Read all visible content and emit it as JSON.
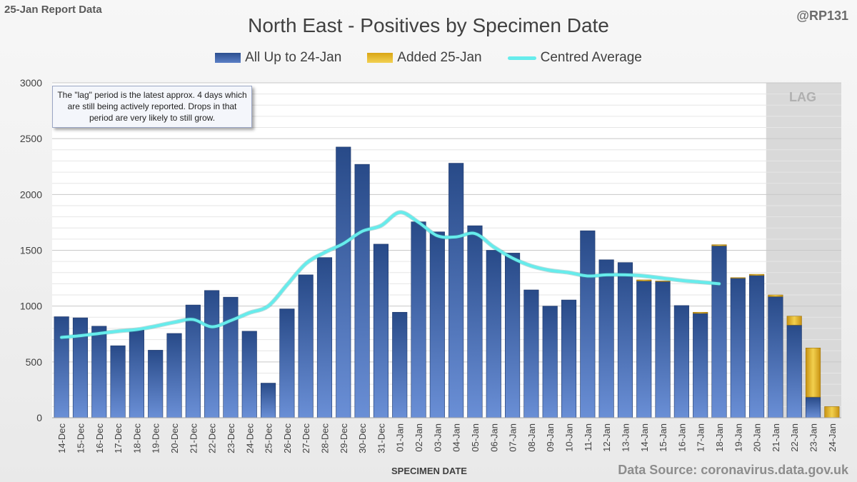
{
  "header": {
    "report": "25-Jan Report Data",
    "handle": "@RP131",
    "source": "Data Source: coronavirus.data.gov.uk"
  },
  "note": {
    "text": "The \"lag\" period is the latest approx. 4 days which are still being actively reported. Drops in that period are very likely to still grow."
  },
  "lag_label": "LAG",
  "colors": {
    "blue": "#2f5597",
    "gold": "#d4a017",
    "line": "#66ecec",
    "lag": "#d9d9d9"
  },
  "chart_data": {
    "type": "bar",
    "title": "North East - Positives by Specimen Date",
    "xlabel": "SPECIMEN DATE",
    "ylabel": "",
    "ylim": [
      0,
      3000
    ],
    "yticks": [
      0,
      500,
      1000,
      1500,
      2000,
      2500,
      3000
    ],
    "grid": true,
    "legend": "top",
    "categories": [
      "14-Dec",
      "15-Dec",
      "16-Dec",
      "17-Dec",
      "18-Dec",
      "19-Dec",
      "20-Dec",
      "21-Dec",
      "22-Dec",
      "23-Dec",
      "24-Dec",
      "25-Dec",
      "26-Dec",
      "27-Dec",
      "28-Dec",
      "29-Dec",
      "30-Dec",
      "31-Dec",
      "01-Jan",
      "02-Jan",
      "03-Jan",
      "04-Jan",
      "05-Jan",
      "06-Jan",
      "07-Jan",
      "08-Jan",
      "09-Jan",
      "10-Jan",
      "11-Jan",
      "12-Jan",
      "13-Jan",
      "14-Jan",
      "15-Jan",
      "16-Jan",
      "17-Jan",
      "18-Jan",
      "19-Jan",
      "20-Jan",
      "21-Jan",
      "22-Jan",
      "23-Jan",
      "24-Jan"
    ],
    "series": [
      {
        "name": "All Up to 24-Jan",
        "values": [
          905,
          895,
          820,
          645,
          785,
          605,
          755,
          1010,
          1140,
          1080,
          775,
          310,
          975,
          1280,
          1435,
          2425,
          2270,
          1555,
          945,
          1755,
          1665,
          2280,
          1720,
          1500,
          1475,
          1145,
          1000,
          1055,
          1675,
          1415,
          1390,
          1225,
          1220,
          1005,
          935,
          1540,
          1250,
          1275,
          1085,
          830,
          185,
          0
        ]
      },
      {
        "name": "Added 25-Jan",
        "values": [
          0,
          0,
          0,
          0,
          0,
          0,
          0,
          0,
          0,
          0,
          0,
          0,
          0,
          0,
          0,
          0,
          0,
          0,
          0,
          0,
          0,
          0,
          0,
          0,
          0,
          0,
          0,
          0,
          0,
          0,
          0,
          10,
          5,
          0,
          10,
          10,
          5,
          10,
          15,
          80,
          440,
          100
        ]
      },
      {
        "name": "Centred Average",
        "values": [
          720,
          735,
          755,
          775,
          790,
          820,
          855,
          880,
          815,
          870,
          940,
          1000,
          1190,
          1380,
          1480,
          1560,
          1670,
          1720,
          1840,
          1750,
          1630,
          1620,
          1650,
          1530,
          1430,
          1360,
          1320,
          1300,
          1270,
          1280,
          1280,
          1270,
          1250,
          1230,
          1215,
          1200,
          null,
          null,
          null,
          null,
          null,
          null
        ]
      }
    ],
    "lag_categories": [
      "21-Jan",
      "22-Jan",
      "23-Jan",
      "24-Jan"
    ]
  }
}
